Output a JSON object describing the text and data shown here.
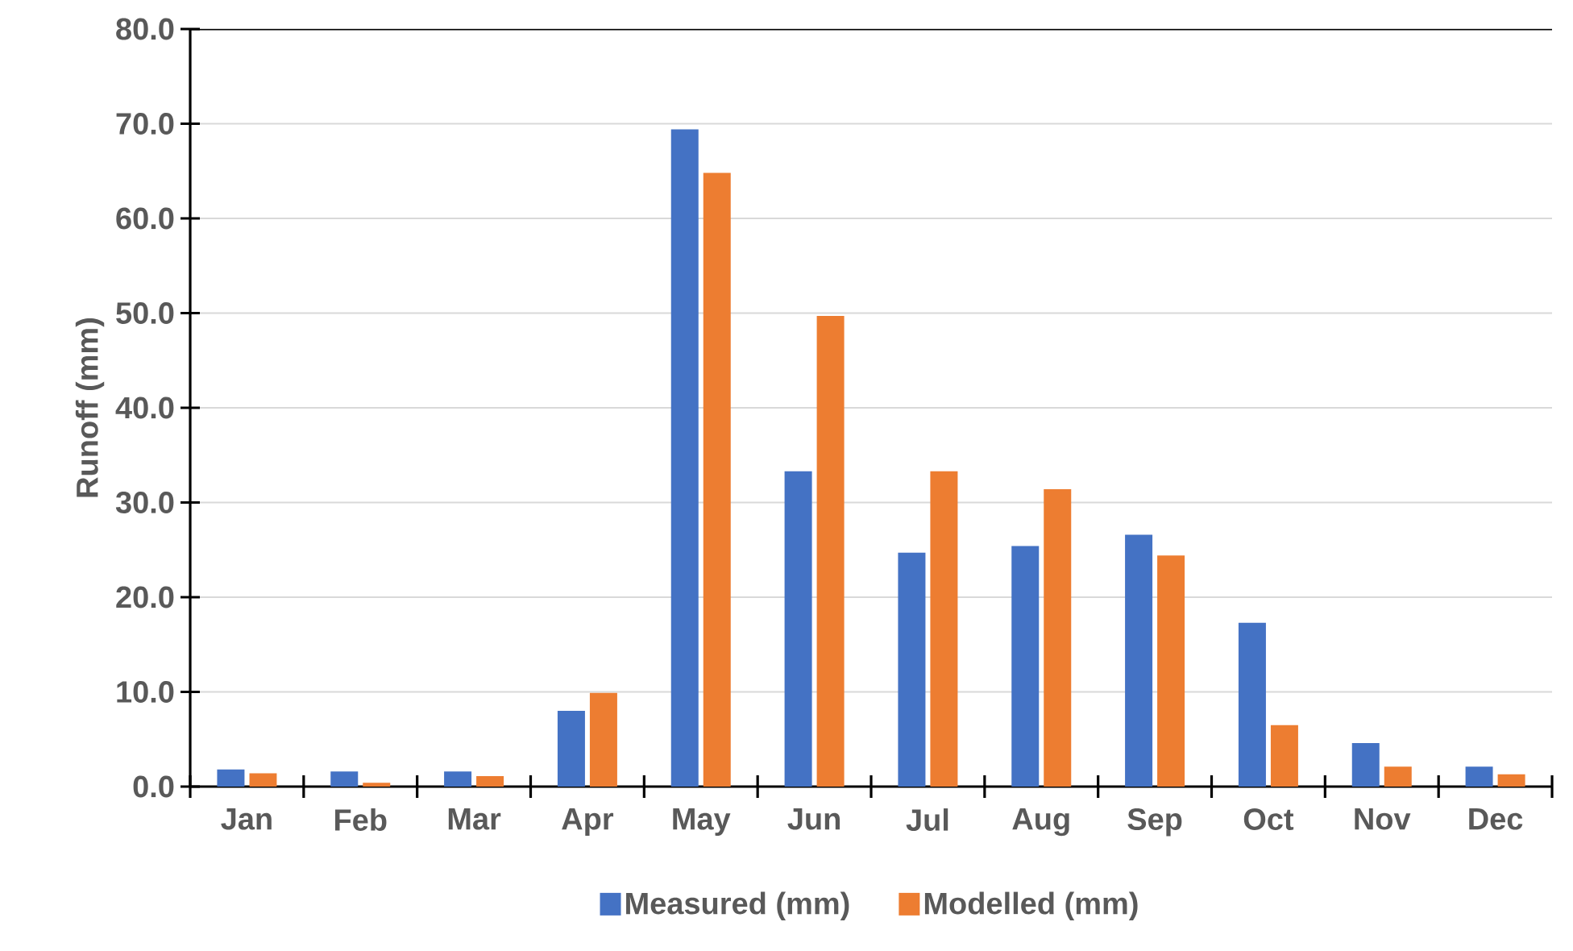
{
  "chart_data": {
    "type": "bar",
    "ylabel": "Runoff (mm)",
    "categories": [
      "Jan",
      "Feb",
      "Mar",
      "Apr",
      "May",
      "Jun",
      "Jul",
      "Aug",
      "Sep",
      "Oct",
      "Nov",
      "Dec"
    ],
    "series": [
      {
        "name": "Measured (mm)",
        "color": "#4472c4",
        "values": [
          1.8,
          1.6,
          1.6,
          8.0,
          69.4,
          33.3,
          24.7,
          25.4,
          26.6,
          17.3,
          4.6,
          2.1
        ]
      },
      {
        "name": "Modelled (mm)",
        "color": "#ed7d31",
        "values": [
          1.4,
          0.4,
          1.1,
          9.9,
          64.8,
          49.7,
          33.3,
          31.4,
          24.4,
          6.5,
          2.1,
          1.3
        ]
      }
    ],
    "ylim": [
      0,
      80
    ],
    "yticks": [
      {
        "value": 0,
        "label": "0.0"
      },
      {
        "value": 10,
        "label": "10.0"
      },
      {
        "value": 20,
        "label": "20.0"
      },
      {
        "value": 30,
        "label": "30.0"
      },
      {
        "value": 40,
        "label": "40.0"
      },
      {
        "value": 50,
        "label": "50.0"
      },
      {
        "value": 60,
        "label": "60.0"
      },
      {
        "value": 70,
        "label": "70.0"
      },
      {
        "value": 80,
        "label": "80.0"
      }
    ],
    "grid": "y",
    "legend": "bottom"
  }
}
